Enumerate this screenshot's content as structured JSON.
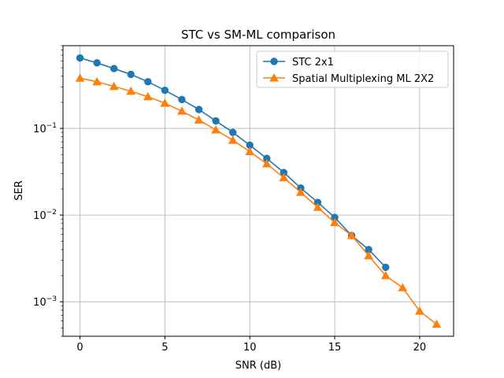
{
  "chart_data": {
    "type": "line",
    "title": "STC vs SM-ML comparison",
    "xlabel": "SNR (dB)",
    "ylabel": "SER",
    "xlim": [
      -1,
      22
    ],
    "ylim": [
      0.0004,
      0.9
    ],
    "yscale": "log",
    "grid": true,
    "legend_position": "top-right",
    "x_ticks": [
      0,
      5,
      10,
      15,
      20
    ],
    "x_tick_labels": [
      "0",
      "5",
      "10",
      "15",
      "20"
    ],
    "y_ticks": [
      0.001,
      0.01,
      0.1
    ],
    "y_tick_labels": [
      {
        "base": "10",
        "exp": "−3"
      },
      {
        "base": "10",
        "exp": "−2"
      },
      {
        "base": "10",
        "exp": "−1"
      }
    ],
    "series": [
      {
        "name": "STC 2x1",
        "color": "#1f77b4",
        "marker": "circle",
        "x": [
          0,
          1,
          2,
          3,
          4,
          5,
          6,
          7,
          8,
          9,
          10,
          11,
          12,
          13,
          14,
          15,
          16,
          17,
          18
        ],
        "y": [
          0.65,
          0.57,
          0.49,
          0.42,
          0.345,
          0.275,
          0.215,
          0.165,
          0.122,
          0.09,
          0.064,
          0.045,
          0.031,
          0.0205,
          0.014,
          0.0094,
          0.0058,
          0.004,
          0.0025
        ]
      },
      {
        "name": "Spatial Multiplexing ML 2X2",
        "color": "#ff7f0e",
        "marker": "triangle",
        "x": [
          0,
          1,
          2,
          3,
          4,
          5,
          6,
          7,
          8,
          9,
          10,
          11,
          12,
          13,
          14,
          15,
          16,
          17,
          18,
          19,
          20,
          21
        ],
        "y": [
          0.38,
          0.345,
          0.305,
          0.268,
          0.232,
          0.195,
          0.158,
          0.125,
          0.096,
          0.073,
          0.054,
          0.039,
          0.027,
          0.0183,
          0.0123,
          0.0082,
          0.0058,
          0.0034,
          0.002,
          0.00145,
          0.00078,
          0.00055
        ]
      }
    ]
  }
}
